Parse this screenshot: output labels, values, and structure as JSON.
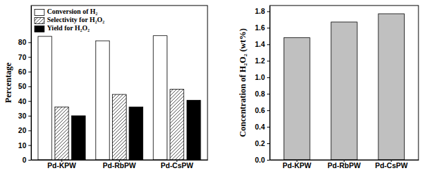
{
  "chart_data": [
    {
      "type": "bar",
      "y_label": "Percentage",
      "categories": [
        "Pd-KPW",
        "Pd-RbPW",
        "Pd-CsPW"
      ],
      "series": [
        {
          "name": "Conversion of H₂",
          "color": "#ffffff",
          "values": [
            84,
            81,
            84.5
          ]
        },
        {
          "name": "Selectivity for H₂O₂",
          "color": "#555555",
          "values": [
            36,
            44.5,
            48
          ]
        },
        {
          "name": "Yield for H₂O₂",
          "color": "#000000",
          "values": [
            30,
            36,
            40.5
          ]
        }
      ],
      "ylim": [
        0,
        105
      ],
      "yticks": [
        0,
        10,
        20,
        30,
        40,
        50,
        60,
        70,
        80
      ],
      "legend": "upper left"
    },
    {
      "type": "bar",
      "y_label": "Concentration of H₂O₂ (wt%)",
      "categories": [
        "Pd-KPW",
        "Pd-RbPW",
        "Pd-CsPW"
      ],
      "values": [
        1.48,
        1.67,
        1.77
      ],
      "color": "#c0c0c0",
      "ylim": [
        0,
        1.87
      ],
      "yticks": [
        {
          "value": 0,
          "label": "0.0"
        },
        0.2,
        0.4,
        0.6,
        0.8,
        {
          "value": 1,
          "label": "1.0"
        },
        1.2,
        1.4,
        1.6,
        1.8
      ]
    }
  ]
}
